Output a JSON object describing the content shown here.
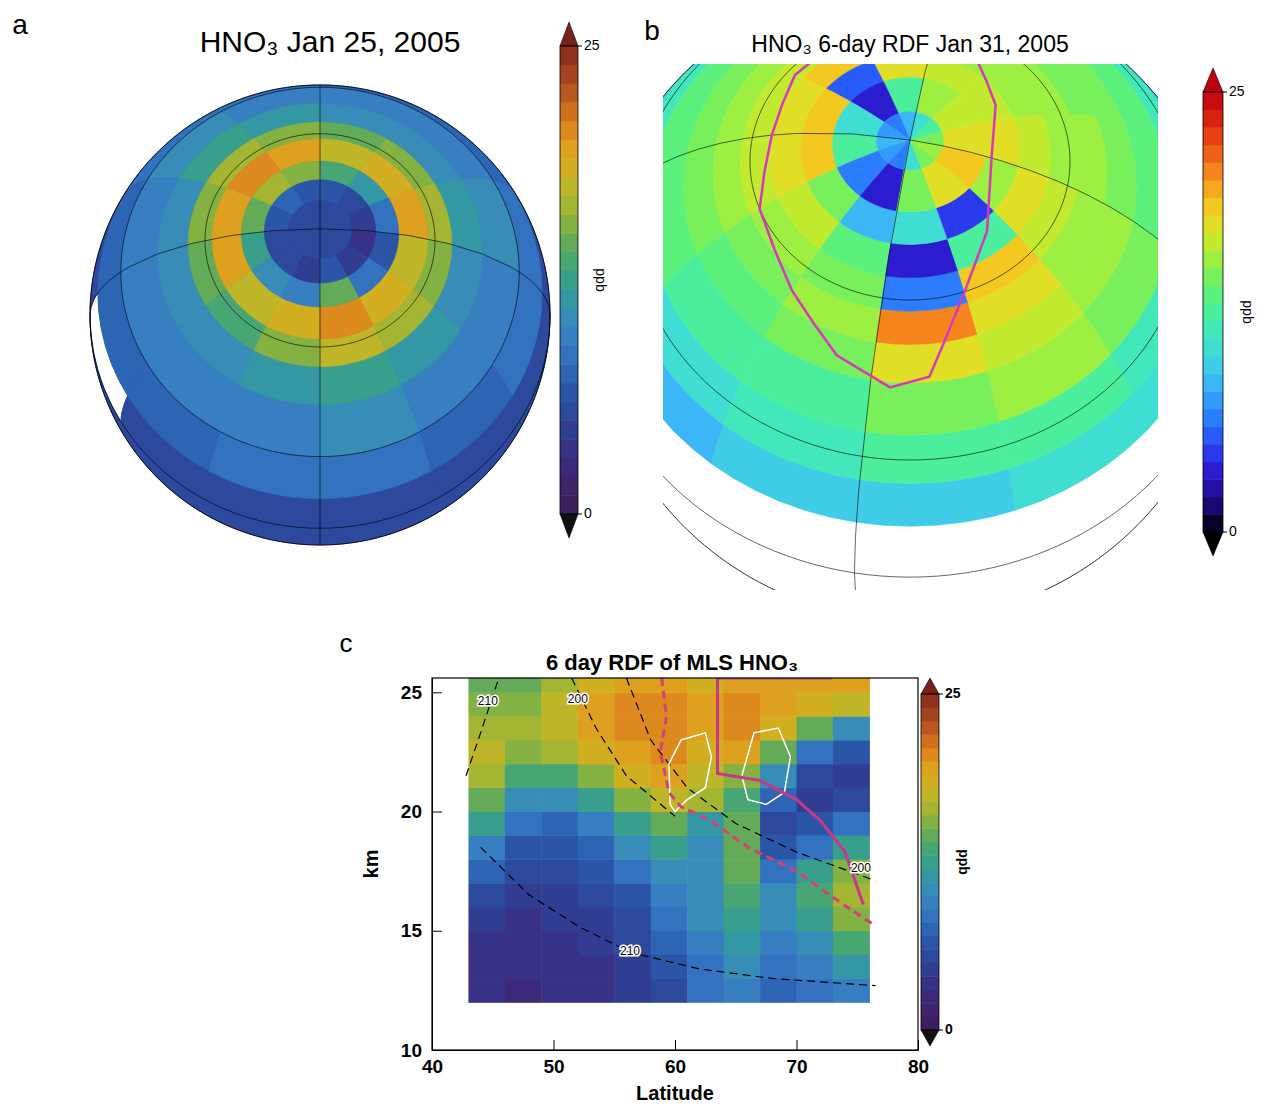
{
  "chart_data": [
    {
      "type": "map",
      "panel": "a",
      "title": "HNO₃ Jan 25, 2005",
      "lat_edges": [
        -20,
        0,
        15,
        30,
        45,
        55,
        62,
        70,
        76,
        82
      ],
      "lon_edges": [
        -180,
        -150,
        -120,
        -90,
        -60,
        -30,
        0,
        30,
        60,
        90,
        120,
        150,
        180
      ],
      "cells": [
        [
          4,
          4,
          4,
          4,
          4,
          4,
          4,
          4,
          4,
          4,
          4,
          4
        ],
        [
          5,
          5,
          5,
          5,
          5,
          5,
          5,
          5,
          5,
          5,
          5,
          5
        ],
        [
          7,
          7,
          8,
          8,
          7,
          8,
          8,
          7,
          7,
          8,
          8,
          7
        ],
        [
          9,
          9,
          9,
          10,
          9,
          9,
          10,
          9,
          9,
          9,
          10,
          9
        ],
        [
          10,
          10,
          11,
          12,
          11,
          10,
          11,
          10,
          10,
          11,
          12,
          10
        ],
        [
          14,
          13,
          15,
          17,
          16,
          15,
          16,
          15,
          14,
          15,
          16,
          15
        ],
        [
          19,
          17,
          18,
          20,
          18,
          17,
          19,
          18,
          17,
          19,
          20,
          19
        ],
        [
          12,
          10,
          9,
          14,
          8,
          6,
          8,
          11,
          13,
          15,
          16,
          14
        ],
        [
          5,
          5,
          4,
          6,
          4,
          3,
          4,
          5,
          6,
          6,
          7,
          6
        ]
      ],
      "colorbar": {
        "range": [
          0,
          25
        ],
        "ticks": [
          0,
          25
        ],
        "label": "ppb"
      }
    },
    {
      "type": "map",
      "panel": "b",
      "title": "HNO₃ 6-day RDF Jan 31, 2005",
      "lat_edges": [
        15,
        25,
        35,
        45,
        52,
        58,
        64,
        70,
        76,
        84,
        90
      ],
      "lon_edges": [
        -180,
        -150,
        -120,
        -90,
        -60,
        -30,
        0,
        30,
        60,
        90,
        120,
        150,
        180
      ],
      "cells": [
        [
          9,
          8,
          9,
          9,
          10,
          10,
          10,
          9,
          9,
          9,
          8,
          9
        ],
        [
          11,
          10,
          11,
          12,
          12,
          11,
          12,
          11,
          11,
          11,
          10,
          11
        ],
        [
          13,
          12,
          12,
          14,
          15,
          14,
          13,
          13,
          12,
          12,
          12,
          13
        ],
        [
          14,
          13,
          14,
          17,
          16,
          15,
          14,
          14,
          13,
          13,
          14,
          14
        ],
        [
          15,
          14,
          15,
          20,
          17,
          15,
          15,
          14,
          14,
          14,
          15,
          15
        ],
        [
          16,
          15,
          14,
          6,
          18,
          16,
          15,
          15,
          14,
          15,
          16,
          16
        ],
        [
          17,
          16,
          13,
          3,
          12,
          17,
          16,
          15,
          15,
          16,
          18,
          17
        ],
        [
          18,
          14,
          8,
          10,
          4,
          15,
          17,
          16,
          16,
          17,
          5,
          18
        ],
        [
          12,
          6,
          3,
          14,
          17,
          18,
          17,
          16,
          15,
          12,
          3,
          10
        ],
        [
          8,
          7,
          6,
          10,
          14,
          15,
          14,
          12,
          10,
          8,
          6,
          7
        ]
      ],
      "vortex_edge": {
        "color": "#d63ab8",
        "lon": [
          100,
          120,
          150,
          180,
          -150,
          -120,
          -100,
          -85,
          -75,
          -70,
          -60,
          -40,
          0,
          40,
          70,
          100
        ],
        "lat": [
          62,
          60,
          62,
          64,
          60,
          55,
          48,
          44,
          46,
          52,
          60,
          68,
          75,
          72,
          66,
          62
        ]
      },
      "colorbar": {
        "range": [
          0,
          25
        ],
        "ticks": [
          0,
          25
        ],
        "label": "ppb"
      }
    },
    {
      "type": "heatmap",
      "panel": "c",
      "title": "6 day RDF of MLS HNO₃",
      "x_label": "Latitude",
      "y_label": "km",
      "xlim": [
        40,
        80
      ],
      "xticks": [
        40,
        50,
        60,
        70,
        80
      ],
      "ylim": [
        10,
        25.6
      ],
      "yticks": [
        10,
        15,
        20,
        25
      ],
      "x_edges": [
        43,
        46,
        49,
        52,
        55,
        58,
        61,
        64,
        67,
        70,
        73,
        76
      ],
      "y_edges": [
        12,
        13,
        14,
        15,
        16,
        17,
        18,
        19,
        20,
        21,
        22,
        23,
        24,
        25,
        26
      ],
      "cells": [
        [
          3,
          2,
          3,
          3,
          4,
          5,
          8,
          9,
          7,
          8,
          9
        ],
        [
          3,
          3,
          3,
          3,
          4,
          6,
          8,
          10,
          8,
          9,
          11
        ],
        [
          3,
          3,
          3,
          4,
          5,
          7,
          9,
          11,
          9,
          10,
          13
        ],
        [
          4,
          3,
          4,
          4,
          5,
          8,
          10,
          12,
          10,
          12,
          15
        ],
        [
          5,
          4,
          4,
          5,
          6,
          9,
          10,
          13,
          10,
          13,
          16
        ],
        [
          7,
          5,
          5,
          6,
          8,
          10,
          10,
          14,
          8,
          12,
          15
        ],
        [
          9,
          6,
          6,
          7,
          10,
          12,
          10,
          14,
          6,
          8,
          12
        ],
        [
          12,
          8,
          7,
          9,
          12,
          14,
          11,
          14,
          5,
          6,
          8
        ],
        [
          14,
          10,
          10,
          12,
          15,
          17,
          16,
          13,
          7,
          4,
          5
        ],
        [
          16,
          13,
          13,
          15,
          18,
          19,
          17,
          15,
          10,
          5,
          4
        ],
        [
          17,
          15,
          16,
          18,
          19,
          20,
          18,
          19,
          14,
          8,
          6
        ],
        [
          16,
          16,
          17,
          19,
          20,
          20,
          19,
          20,
          18,
          14,
          10
        ],
        [
          15,
          15,
          17,
          19,
          20,
          20,
          19,
          20,
          19,
          18,
          17
        ],
        [
          14,
          14,
          16,
          18,
          19,
          19,
          18,
          19,
          19,
          19,
          19
        ]
      ],
      "contours": [
        {
          "label": "210",
          "color": "#000000",
          "line_style": "dashed",
          "x": [
            42.8,
            44,
            45.5
          ],
          "y": [
            21.5,
            23.3,
            25.6
          ],
          "label_pos": [
            44.6,
            24.6
          ]
        },
        {
          "label": "200",
          "color": "#000000",
          "line_style": "dashed",
          "x": [
            51.5,
            53.5,
            56,
            60
          ],
          "y": [
            25.6,
            23.5,
            21.5,
            19.8
          ],
          "label_pos": [
            52,
            24.7
          ]
        },
        {
          "label": "200",
          "color": "#000000",
          "line_style": "dashed",
          "x": [
            56,
            58,
            61,
            65,
            70,
            76.5
          ],
          "y": [
            25.6,
            23,
            21,
            19.5,
            18.3,
            17.1
          ],
          "label_pos": [
            75.3,
            17.6
          ]
        },
        {
          "label": "210",
          "color": "#000000",
          "line_style": "dashed",
          "x": [
            44,
            48,
            52,
            56.3,
            62,
            68,
            76.5
          ],
          "y": [
            18.5,
            16.5,
            15.2,
            14.1,
            13.4,
            13,
            12.7
          ],
          "label_pos": [
            56.3,
            14.1
          ]
        }
      ],
      "vortex_edges": [
        {
          "color": "#c8388a",
          "line_style": "solid",
          "x": [
            72.9,
            63.5,
            63.5,
            67,
            70,
            72,
            74,
            75.5
          ],
          "y": [
            25.6,
            25.6,
            21.6,
            21.3,
            20.5,
            19.6,
            18.3,
            16.1
          ]
        },
        {
          "color": "#d6407a",
          "line_style": "dashed",
          "x": [
            58.9,
            59.3,
            58.8,
            59.5,
            60.5,
            63,
            66,
            70,
            73,
            76.5
          ],
          "y": [
            25.6,
            24,
            22.5,
            20.8,
            20.2,
            19.6,
            18.5,
            17.5,
            16.4,
            15.2
          ]
        }
      ],
      "psc_outlines": [
        {
          "color": "#ffffff",
          "x": [
            59.6,
            59.5,
            60.5,
            62.5,
            63,
            62.5,
            61,
            60,
            59.6
          ],
          "y": [
            20.3,
            22,
            23,
            23.3,
            22.3,
            21,
            20.5,
            20,
            20.3
          ]
        },
        {
          "color": "#ffffff",
          "x": [
            65.5,
            66.5,
            68.5,
            69.5,
            69,
            67.5,
            66,
            65.5
          ],
          "y": [
            21.5,
            23.3,
            23.5,
            22.3,
            20.8,
            20.3,
            20.5,
            21.5
          ]
        }
      ],
      "colorbar": {
        "range": [
          0,
          25
        ],
        "ticks": [
          0,
          25
        ],
        "label": "ppb"
      }
    }
  ]
}
